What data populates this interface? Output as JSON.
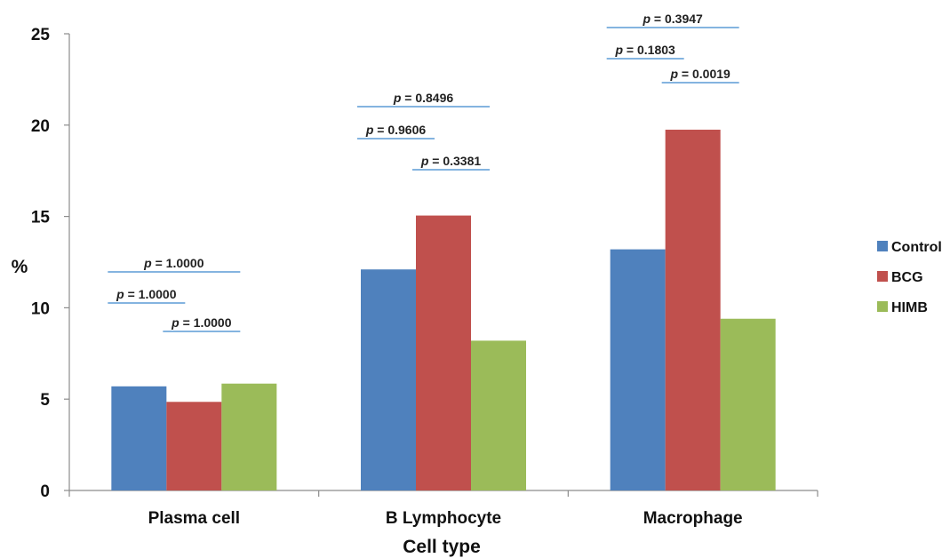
{
  "chart_data": {
    "type": "bar",
    "title": "",
    "xlabel": "Cell type",
    "ylabel": "%",
    "ylim": [
      0,
      25
    ],
    "yticks": [
      "0",
      "5",
      "10",
      "15",
      "20",
      "25"
    ],
    "grid": false,
    "legend_position": "right",
    "categories": [
      "Plasma cell",
      "B Lymphocyte",
      "Macrophage"
    ],
    "series": [
      {
        "name": "Control",
        "color": "#4f81bd",
        "values": [
          5.7,
          12.1,
          13.2
        ]
      },
      {
        "name": "BCG",
        "color": "#c0504d",
        "values": [
          4.85,
          15.05,
          19.75
        ]
      },
      {
        "name": "HIMB",
        "color": "#9bbb59",
        "values": [
          5.85,
          8.2,
          9.4
        ]
      }
    ],
    "annotations": [
      {
        "category": 0,
        "pair": "Control-HIMB",
        "p_prefix": "p",
        "p_value": "= 1.0000"
      },
      {
        "category": 0,
        "pair": "Control-BCG",
        "p_prefix": "p",
        "p_value": "= 1.0000"
      },
      {
        "category": 0,
        "pair": "BCG-HIMB",
        "p_prefix": "p",
        "p_value": "= 1.0000"
      },
      {
        "category": 1,
        "pair": "Control-HIMB",
        "p_prefix": "p",
        "p_value": "= 0.8496"
      },
      {
        "category": 1,
        "pair": "Control-BCG",
        "p_prefix": "p",
        "p_value": "= 0.9606"
      },
      {
        "category": 1,
        "pair": "BCG-HIMB",
        "p_prefix": "p",
        "p_value": "= 0.3381"
      },
      {
        "category": 2,
        "pair": "Control-HIMB",
        "p_prefix": "p",
        "p_value": "= 0.3947"
      },
      {
        "category": 2,
        "pair": "Control-BCG",
        "p_prefix": "p",
        "p_value": "= 0.1803"
      },
      {
        "category": 2,
        "pair": "BCG-HIMB",
        "p_prefix": "p",
        "p_value": "= 0.0019"
      }
    ],
    "annotation_line_color": "#5b9bd5"
  }
}
